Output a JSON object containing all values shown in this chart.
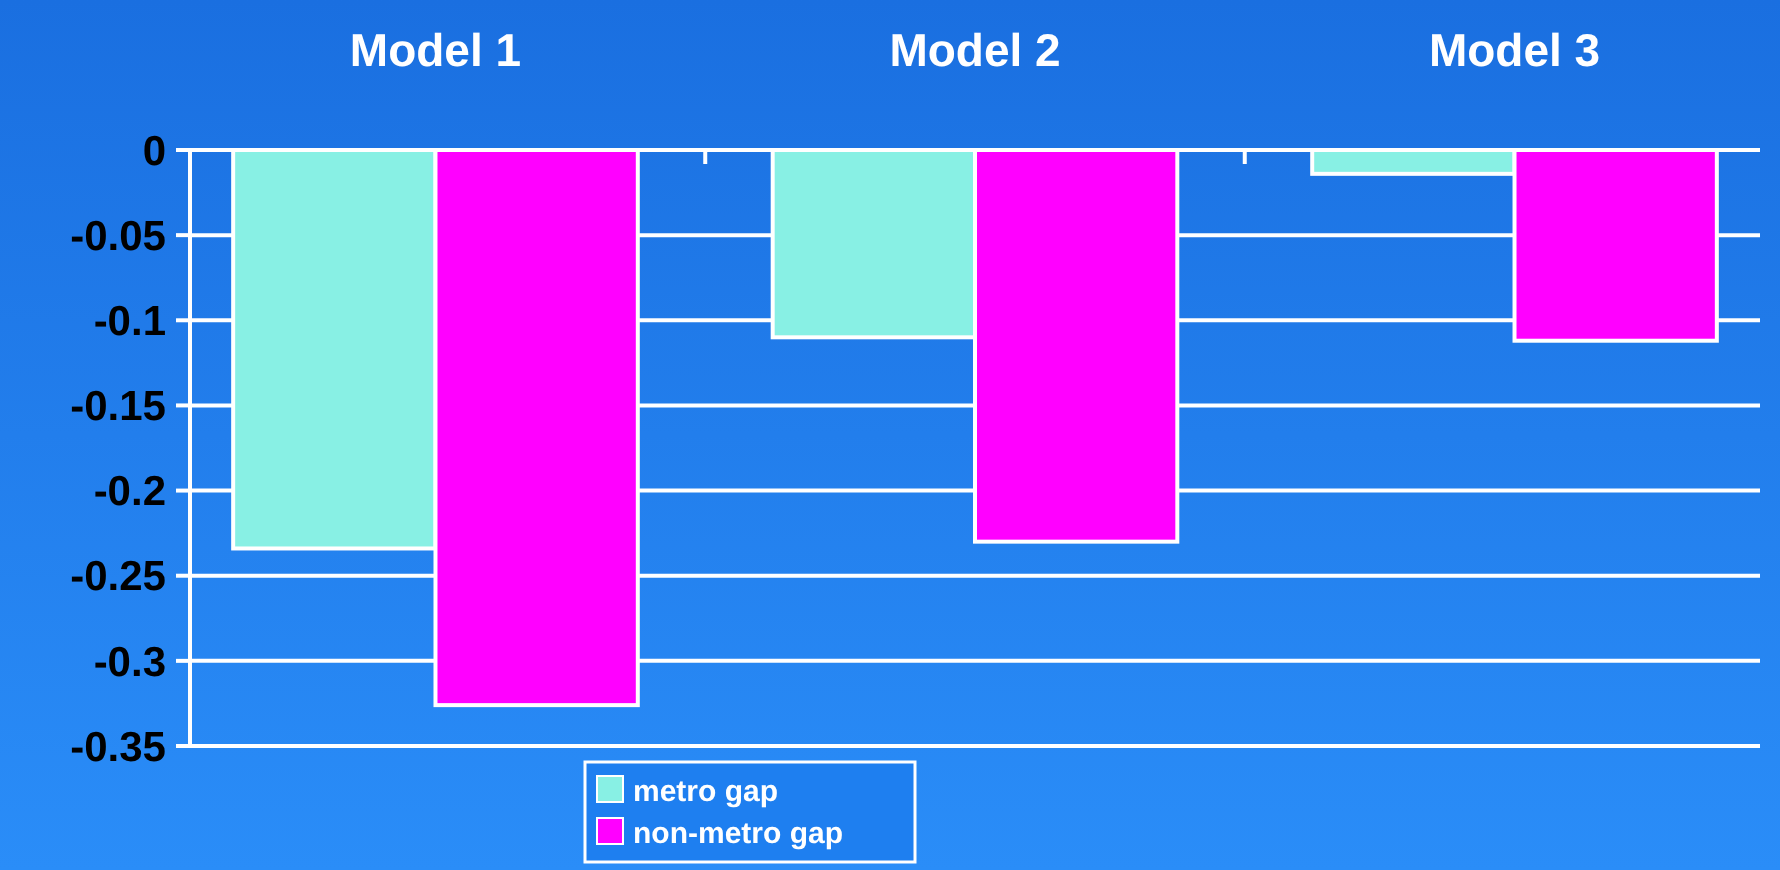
{
  "chart_data": {
    "type": "bar",
    "categories": [
      "Model 1",
      "Model 2",
      "Model 3"
    ],
    "series": [
      {
        "name": "metro gap",
        "color": "#88f0e4",
        "values": [
          -0.234,
          -0.11,
          -0.014
        ]
      },
      {
        "name": "non-metro gap",
        "color": "#ff00ff",
        "values": [
          -0.326,
          -0.23,
          -0.112
        ]
      }
    ],
    "ylim": [
      -0.35,
      0
    ],
    "yticks": [
      0,
      -0.05,
      -0.1,
      -0.15,
      -0.2,
      -0.25,
      -0.3,
      -0.35
    ],
    "grid": "y",
    "legend": "bottom"
  }
}
